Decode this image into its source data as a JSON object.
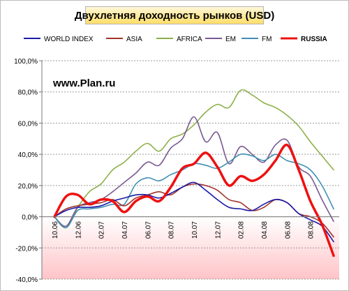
{
  "chart_data": {
    "type": "line",
    "title": "Двухлетняя доходность рынков (USD)",
    "watermark": "www.Plan.ru",
    "ylim": [
      -40,
      100
    ],
    "yticks": [
      100,
      80,
      60,
      40,
      20,
      0,
      -20,
      -40
    ],
    "ytick_labels": [
      "100,0%",
      "80,0%",
      "60,0%",
      "40,0%",
      "20,0%",
      "0,0%",
      "-20,0%",
      "-40,0%"
    ],
    "xlim": [
      0,
      48
    ],
    "xtick_labels": [
      "10.06",
      "12.06",
      "02.07",
      "04.07",
      "06.07",
      "08.07",
      "10.07",
      "12.07",
      "02.08",
      "04.08",
      "06.08",
      "08.08"
    ],
    "negative_band_color": "#ffc4c8",
    "grid": true,
    "legend_position": "top",
    "series": [
      {
        "name": "WORLD INDEX",
        "color": "#1a1aa6",
        "bold": false,
        "x": [
          0,
          2,
          4,
          6,
          8,
          10,
          12,
          14,
          16,
          18,
          20,
          22,
          24,
          26,
          28,
          30,
          32,
          34,
          36,
          38,
          40,
          42,
          44,
          46,
          48
        ],
        "values": [
          0,
          4,
          6,
          6,
          7,
          10,
          12,
          14,
          14,
          12,
          15,
          19,
          22,
          17,
          11,
          6,
          5,
          4,
          8,
          11,
          9,
          2,
          -2,
          -6,
          -16
        ]
      },
      {
        "name": "ASIA",
        "color": "#a0342c",
        "bold": false,
        "x": [
          0,
          2,
          4,
          6,
          8,
          10,
          12,
          14,
          16,
          18,
          20,
          22,
          24,
          26,
          28,
          30,
          32,
          34,
          36,
          38,
          40,
          42,
          44,
          46,
          48
        ],
        "values": [
          0,
          5,
          7,
          8,
          9,
          11,
          7,
          12,
          14,
          16,
          14,
          19,
          21,
          20,
          17,
          11,
          9,
          4,
          6,
          11,
          9,
          2,
          0,
          -4,
          -13
        ]
      },
      {
        "name": "AFRICA",
        "color": "#8db04a",
        "bold": false,
        "x": [
          0,
          2,
          4,
          6,
          8,
          10,
          12,
          14,
          16,
          18,
          20,
          22,
          24,
          26,
          28,
          30,
          32,
          34,
          36,
          38,
          40,
          42,
          44,
          46,
          48
        ],
        "values": [
          0,
          -7,
          6,
          16,
          21,
          30,
          35,
          42,
          47,
          42,
          50,
          53,
          59,
          67,
          72,
          70,
          81,
          78,
          73,
          70,
          65,
          58,
          48,
          39,
          30
        ]
      },
      {
        "name": "EM",
        "color": "#7a5a92",
        "bold": false,
        "x": [
          0,
          2,
          4,
          6,
          8,
          10,
          12,
          14,
          16,
          18,
          20,
          22,
          24,
          26,
          28,
          30,
          32,
          34,
          36,
          38,
          40,
          42,
          44,
          46,
          48
        ],
        "values": [
          0,
          -6,
          6,
          9,
          11,
          16,
          22,
          28,
          35,
          33,
          44,
          50,
          64,
          48,
          54,
          34,
          45,
          40,
          35,
          46,
          49,
          32,
          26,
          11,
          -3
        ]
      },
      {
        "name": "FM",
        "color": "#3f8fb3",
        "bold": false,
        "x": [
          0,
          2,
          4,
          6,
          8,
          10,
          12,
          14,
          16,
          18,
          20,
          22,
          24,
          26,
          28,
          30,
          32,
          34,
          36,
          38,
          40,
          42,
          44,
          46,
          48
        ],
        "values": [
          0,
          -7,
          4,
          5,
          6,
          8,
          8,
          21,
          25,
          23,
          27,
          30,
          34,
          33,
          31,
          35,
          40,
          39,
          36,
          40,
          36,
          34,
          30,
          20,
          5
        ]
      },
      {
        "name": "RUSSIA",
        "color": "#ee1111",
        "bold": true,
        "x": [
          0,
          2,
          4,
          6,
          8,
          10,
          12,
          14,
          16,
          18,
          20,
          22,
          24,
          26,
          28,
          30,
          32,
          34,
          36,
          38,
          40,
          42,
          44,
          46,
          48
        ],
        "values": [
          0,
          13,
          14,
          8,
          11,
          10,
          3,
          10,
          13,
          10,
          19,
          31,
          34,
          41,
          32,
          20,
          26,
          23,
          27,
          36,
          46,
          30,
          10,
          -5,
          -25
        ]
      }
    ]
  }
}
